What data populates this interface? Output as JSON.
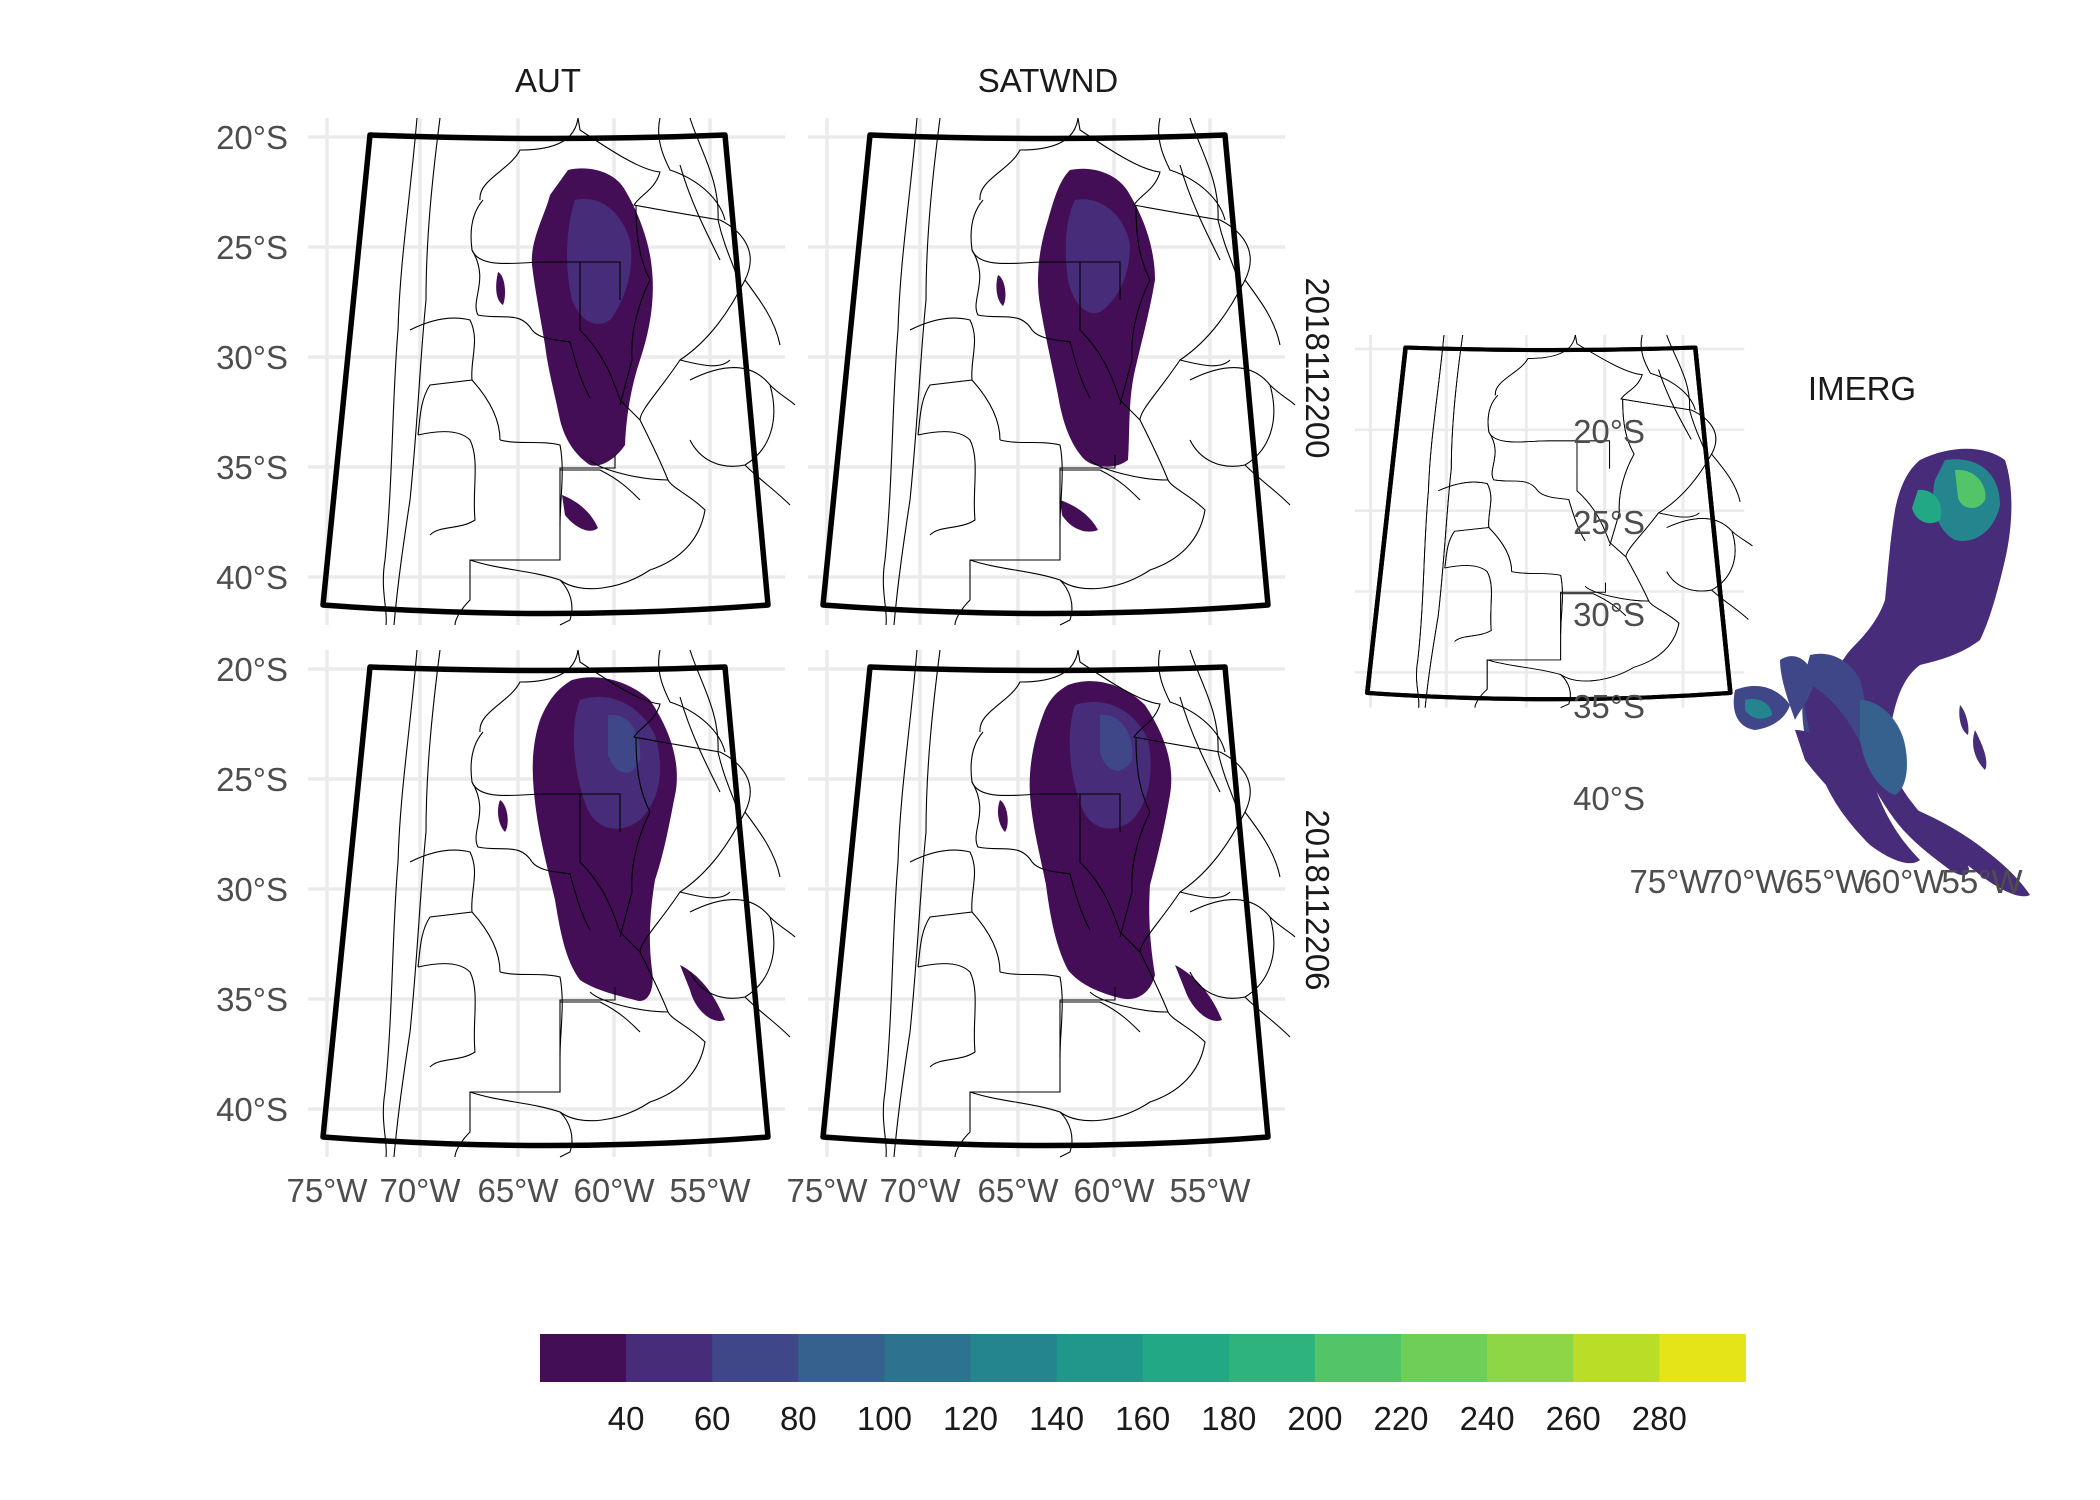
{
  "panels": {
    "columns": [
      "AUT",
      "SATWND"
    ],
    "rows": [
      "2018112200",
      "2018112206"
    ],
    "observation": "IMERG"
  },
  "axes": {
    "lat_labels": [
      "20°S",
      "25°S",
      "30°S",
      "35°S",
      "40°S"
    ],
    "lon_labels": [
      "75°W",
      "70°W",
      "65°W",
      "60°W",
      "55°W"
    ]
  },
  "legend": {
    "colors": [
      "#440154",
      "#482475",
      "#414487",
      "#355f8d",
      "#2a788e",
      "#21918c",
      "#22a884",
      "#44bf70",
      "#7ad151",
      "#bddf26",
      "#fde725",
      "#5ec962",
      "#2db27d",
      "#d2e21b"
    ],
    "ordered_colors": [
      "#440e57",
      "#472c7a",
      "#3f4788",
      "#36608d",
      "#2d728e",
      "#25858e",
      "#1f978b",
      "#22a884",
      "#2eb37c",
      "#52c569",
      "#6ece58",
      "#8ed645",
      "#bade28",
      "#e4e419"
    ],
    "tick_labels": [
      "40",
      "60",
      "80",
      "100",
      "120",
      "140",
      "160",
      "180",
      "200",
      "220",
      "240",
      "260",
      "280"
    ]
  }
}
